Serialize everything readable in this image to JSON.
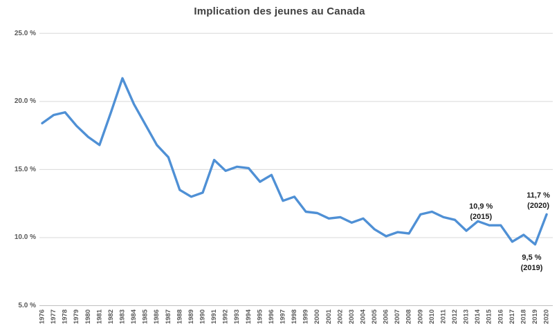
{
  "chart_data": {
    "type": "line",
    "title": "Implication des jeunes au Canada",
    "categories": [
      "1976",
      "1977",
      "1978",
      "1979",
      "1980",
      "1981",
      "1982",
      "1983",
      "1984",
      "1985",
      "1986",
      "1987",
      "1988",
      "1989",
      "1990",
      "1991",
      "1992",
      "1993",
      "1994",
      "1995",
      "1996",
      "1997",
      "1998",
      "1999",
      "2000",
      "2001",
      "2002",
      "2003",
      "2004",
      "2005",
      "2006",
      "2007",
      "2008",
      "2009",
      "2010",
      "2011",
      "2012",
      "2013",
      "2014",
      "2015",
      "2016",
      "2017",
      "2018",
      "2019",
      "2020"
    ],
    "values": [
      18.4,
      19.0,
      19.2,
      18.2,
      17.4,
      16.8,
      19.2,
      21.7,
      19.8,
      18.3,
      16.8,
      15.9,
      13.5,
      13.0,
      13.3,
      15.7,
      14.9,
      15.2,
      15.1,
      14.1,
      14.6,
      12.7,
      13.0,
      11.9,
      11.8,
      11.4,
      11.5,
      11.1,
      11.4,
      10.6,
      10.1,
      10.4,
      10.3,
      11.7,
      11.9,
      11.5,
      11.3,
      10.5,
      11.2,
      10.9,
      10.9,
      9.7,
      10.2,
      9.5,
      11.7
    ],
    "xlabel": "",
    "ylabel": "",
    "ylim": [
      5,
      25
    ],
    "grid": true,
    "legend_position": "none",
    "y_ticks": [
      {
        "label": "25.0 %",
        "value": 25
      },
      {
        "label": "20.0 %",
        "value": 20
      },
      {
        "label": "15.0 %",
        "value": 15
      },
      {
        "label": "10.0 %",
        "value": 10
      },
      {
        "label": "5.0 %",
        "value": 5
      }
    ],
    "annotations": [
      {
        "line1": "10,9 %",
        "line2": "(2015)",
        "year": "2015",
        "value": 10.9,
        "placement": "above"
      },
      {
        "line1": "11,7 %",
        "line2": "(2020)",
        "year": "2020",
        "value": 11.7,
        "placement": "above"
      },
      {
        "line1": "9,5 %",
        "line2": "(2019)",
        "year": "2019",
        "value": 9.5,
        "placement": "below"
      }
    ],
    "colors": {
      "line": "#4f90d5",
      "gridline": "#d8d8d8",
      "axis_line": "#bfbfbf",
      "title_text": "#3f3f3f",
      "tick_text": "#595959",
      "annotation_text": "#1a1a1a"
    }
  }
}
